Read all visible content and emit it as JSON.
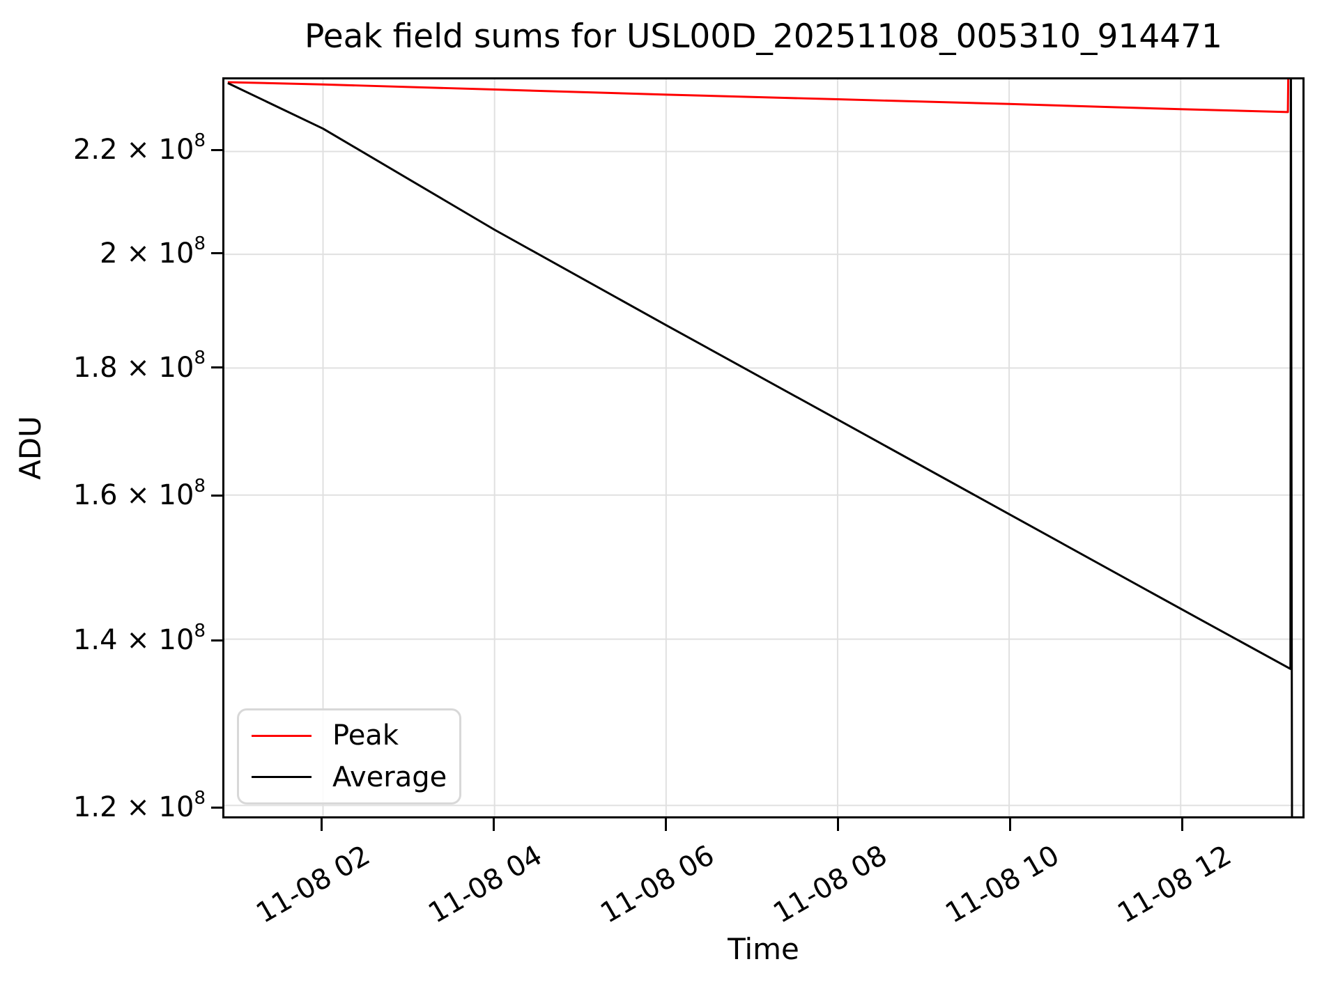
{
  "figure": {
    "background": "#ffffff"
  },
  "header": {
    "title": "Peak field sums for USL00D_20251108_005310_914471"
  },
  "legend": {
    "position": "lower left",
    "items": [
      {
        "label": "Peak",
        "color": "#ff0000"
      },
      {
        "label": "Average",
        "color": "#000000"
      }
    ]
  },
  "colors": {
    "peak_line": "#ff0000",
    "average_line": "#000000",
    "grid": "#e0e0e0",
    "spine": "#000000",
    "legend_border": "#d8d8d8",
    "background": "#ffffff"
  },
  "chart_data": {
    "type": "line",
    "title": "Peak field sums for USL00D_20251108_005310_914471",
    "xlabel": "Time",
    "ylabel": "ADU",
    "grid": true,
    "legend_position": "lower left",
    "x_axis": {
      "unit": "time of day on 11-08 (MM-DD HH)",
      "range_hours": [
        0.85,
        13.42
      ],
      "ticks": [
        {
          "hour": 2,
          "label": "11-08 02"
        },
        {
          "hour": 4,
          "label": "11-08 04"
        },
        {
          "hour": 6,
          "label": "11-08 06"
        },
        {
          "hour": 8,
          "label": "11-08 08"
        },
        {
          "hour": 10,
          "label": "11-08 10"
        },
        {
          "hour": 12,
          "label": "11-08 12"
        }
      ],
      "tick_label_rotation_deg": 30
    },
    "y_axis": {
      "scale": "log",
      "range": [
        118800000,
        235200000
      ],
      "times_sign": "×",
      "base": "10",
      "exponent": "8",
      "ticks": [
        {
          "value": 220000000,
          "mantissa": "2.2"
        },
        {
          "value": 200000000,
          "mantissa": "2"
        },
        {
          "value": 180000000,
          "mantissa": "1.8"
        },
        {
          "value": 160000000,
          "mantissa": "1.6"
        },
        {
          "value": 140000000,
          "mantissa": "1.4"
        },
        {
          "value": 120000000,
          "mantissa": "1.2"
        }
      ]
    },
    "series": [
      {
        "name": "Peak",
        "color": "#ff0000",
        "points_hour_adu": [
          [
            0.89,
            234600000
          ],
          [
            2,
            234100000
          ],
          [
            4,
            233000000
          ],
          [
            6,
            231900000
          ],
          [
            8,
            230900000
          ],
          [
            10,
            229900000
          ],
          [
            12,
            228800000
          ],
          [
            13.25,
            228200000
          ],
          [
            13.26,
            245000000
          ]
        ]
      },
      {
        "name": "Average",
        "color": "#000000",
        "points_hour_adu": [
          [
            0.89,
            234400000
          ],
          [
            2,
            224700000
          ],
          [
            4,
            204600000
          ],
          [
            6,
            187300000
          ],
          [
            8,
            171600000
          ],
          [
            10,
            157200000
          ],
          [
            12,
            144000000
          ],
          [
            13.28,
            136200000
          ],
          [
            13.285,
            245000000
          ],
          [
            13.3,
            105000000
          ]
        ]
      }
    ],
    "annotations": [
      "Both series start near 2.35×10^8 ADU at ~11-08 00:53.",
      "Peak declines slowly, then spikes vertically off-scale (above axis top) at ~11-08 13:16.",
      "Average declines exponentially (straight on log axis) to ~1.36×10^8, then a full-height vertical spike (clipped above and below axis limits) at ~11-08 13:17."
    ]
  }
}
